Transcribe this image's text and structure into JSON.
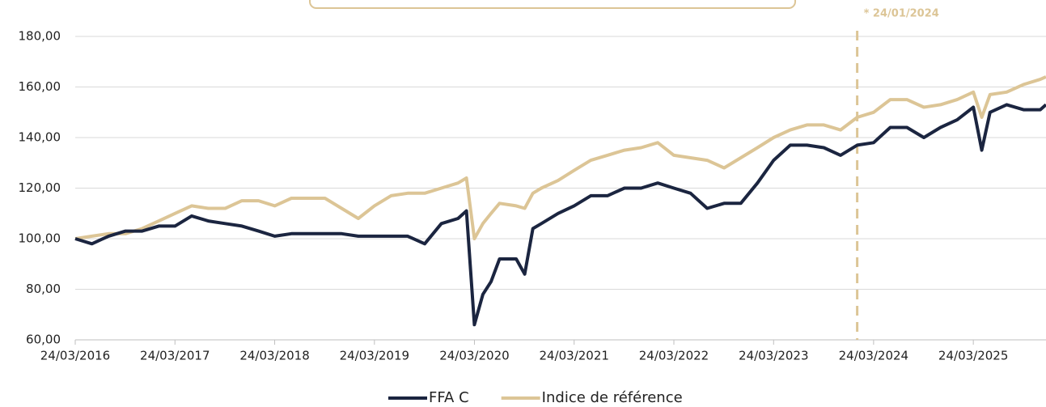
{
  "chart_data": {
    "type": "line",
    "x": [
      "24/03/2016",
      "24/05/2016",
      "24/07/2016",
      "24/09/2016",
      "24/11/2016",
      "24/01/2017",
      "24/03/2017",
      "24/05/2017",
      "24/07/2017",
      "24/09/2017",
      "24/11/2017",
      "24/01/2018",
      "24/03/2018",
      "24/05/2018",
      "24/07/2018",
      "24/09/2018",
      "24/11/2018",
      "24/01/2019",
      "24/03/2019",
      "24/05/2019",
      "24/07/2019",
      "24/09/2019",
      "24/11/2019",
      "24/01/2020",
      "24/02/2020",
      "24/03/2020",
      "24/04/2020",
      "24/05/2020",
      "24/06/2020",
      "24/08/2020",
      "24/09/2020",
      "24/10/2020",
      "24/11/2020",
      "24/01/2021",
      "24/03/2021",
      "24/05/2021",
      "24/07/2021",
      "24/09/2021",
      "24/11/2021",
      "24/01/2022",
      "24/03/2022",
      "24/05/2022",
      "24/07/2022",
      "24/09/2022",
      "24/11/2022",
      "24/01/2023",
      "24/03/2023",
      "24/05/2023",
      "24/07/2023",
      "24/09/2023",
      "24/11/2023",
      "24/01/2024",
      "24/03/2024",
      "24/05/2024",
      "24/07/2024",
      "24/09/2024",
      "24/11/2024",
      "24/01/2025",
      "24/03/2025",
      "24/04/2025",
      "24/05/2025",
      "24/07/2025",
      "24/09/2025",
      "24/11/2025",
      "15/12/2025"
    ],
    "series": [
      {
        "name": "FFA C",
        "color": "#1b2540",
        "values": [
          100,
          98,
          101,
          103,
          103,
          105,
          105,
          109,
          107,
          106,
          105,
          103,
          101,
          102,
          102,
          102,
          102,
          101,
          101,
          101,
          101,
          98,
          106,
          108,
          111,
          66,
          78,
          83,
          92,
          92,
          86,
          104,
          106,
          110,
          113,
          117,
          117,
          120,
          120,
          122,
          120,
          118,
          112,
          114,
          114,
          122,
          131,
          137,
          137,
          136,
          133,
          137,
          138,
          144,
          144,
          140,
          144,
          147,
          152,
          135,
          150,
          153,
          151,
          151,
          153
        ]
      },
      {
        "name": "Indice de référence",
        "color": "#dcc596",
        "values": [
          100,
          101,
          102,
          102,
          104,
          107,
          110,
          113,
          112,
          112,
          115,
          115,
          113,
          116,
          116,
          116,
          112,
          108,
          113,
          117,
          118,
          118,
          120,
          122,
          124,
          100,
          106,
          110,
          114,
          113,
          112,
          118,
          120,
          123,
          127,
          131,
          133,
          135,
          136,
          138,
          133,
          132,
          131,
          128,
          132,
          136,
          140,
          143,
          145,
          145,
          143,
          148,
          150,
          155,
          155,
          152,
          153,
          155,
          158,
          148,
          157,
          158,
          161,
          163,
          164
        ]
      }
    ],
    "xlim": [
      "24/03/2016",
      "15/12/2025"
    ],
    "xticks": [
      "24/03/2016",
      "24/03/2017",
      "24/03/2018",
      "24/03/2019",
      "24/03/2020",
      "24/03/2021",
      "24/03/2022",
      "24/03/2023",
      "24/03/2024",
      "24/03/2025"
    ],
    "ylim": [
      60,
      180
    ],
    "yticks": [
      {
        "value": 60,
        "label": "60,00"
      },
      {
        "value": 80,
        "label": "80,00"
      },
      {
        "value": 100,
        "label": "100,00"
      },
      {
        "value": 120,
        "label": "120,00"
      },
      {
        "value": 140,
        "label": "140,00"
      },
      {
        "value": 160,
        "label": "160,00"
      },
      {
        "value": 180,
        "label": "180,00"
      }
    ],
    "grid": true,
    "vline": {
      "x": "24/01/2024",
      "label": "* 24/01/2024",
      "color": "#dcc596"
    },
    "legend": "bottom"
  }
}
